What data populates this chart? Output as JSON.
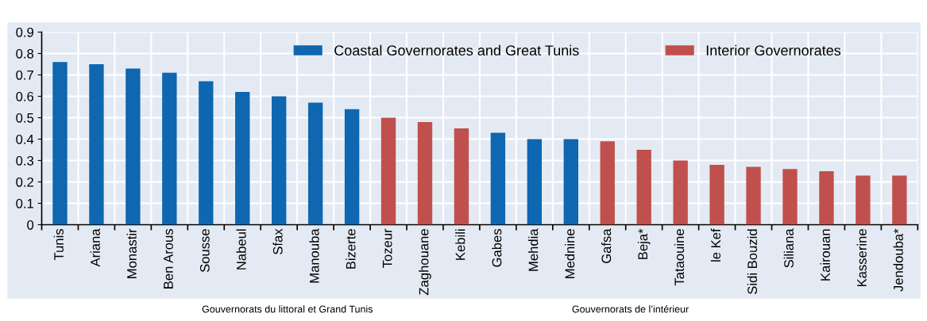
{
  "chart_data": {
    "type": "bar",
    "categories": [
      "Tunis",
      "Ariana",
      "Monastir",
      "Ben Arous",
      "Sousse",
      "Nabeul",
      "Sfax",
      "Manouba",
      "Bizerte",
      "Tozeur",
      "Zaghouane",
      "Kebili",
      "Gabes",
      "Mehdia",
      "Mednine",
      "Gafsa",
      "Beja*",
      "Tataouine",
      "le Kef",
      "Sidi Bouzid",
      "Siliana",
      "Kairouan",
      "Kasserine",
      "Jendouba*"
    ],
    "series": [
      {
        "name": "Coastal Governorates and Great Tunis",
        "color": "#0e67b0",
        "values": [
          0.76,
          0.75,
          0.73,
          0.71,
          0.67,
          0.62,
          0.6,
          0.57,
          0.54,
          null,
          null,
          null,
          0.43,
          0.4,
          0.4,
          null,
          null,
          null,
          null,
          null,
          null,
          null,
          null,
          null
        ]
      },
      {
        "name": "Interior Governorates",
        "color": "#c0504d",
        "values": [
          null,
          null,
          null,
          null,
          null,
          null,
          null,
          null,
          null,
          0.5,
          0.48,
          0.45,
          null,
          null,
          null,
          0.39,
          0.35,
          0.3,
          0.28,
          0.27,
          0.26,
          0.25,
          0.23,
          0.23
        ]
      }
    ],
    "ylim": [
      0,
      0.9
    ],
    "yticks": [
      {
        "value": 0,
        "label": "0"
      },
      0.1,
      0.2,
      0.3,
      0.4,
      0.5,
      0.6,
      0.7,
      0.8,
      0.9
    ],
    "grid": true,
    "legend": "top",
    "annotations": [
      "Gouvernorats du littoral et Grand Tunis",
      "Gouvernorats de l’intérieur"
    ]
  }
}
